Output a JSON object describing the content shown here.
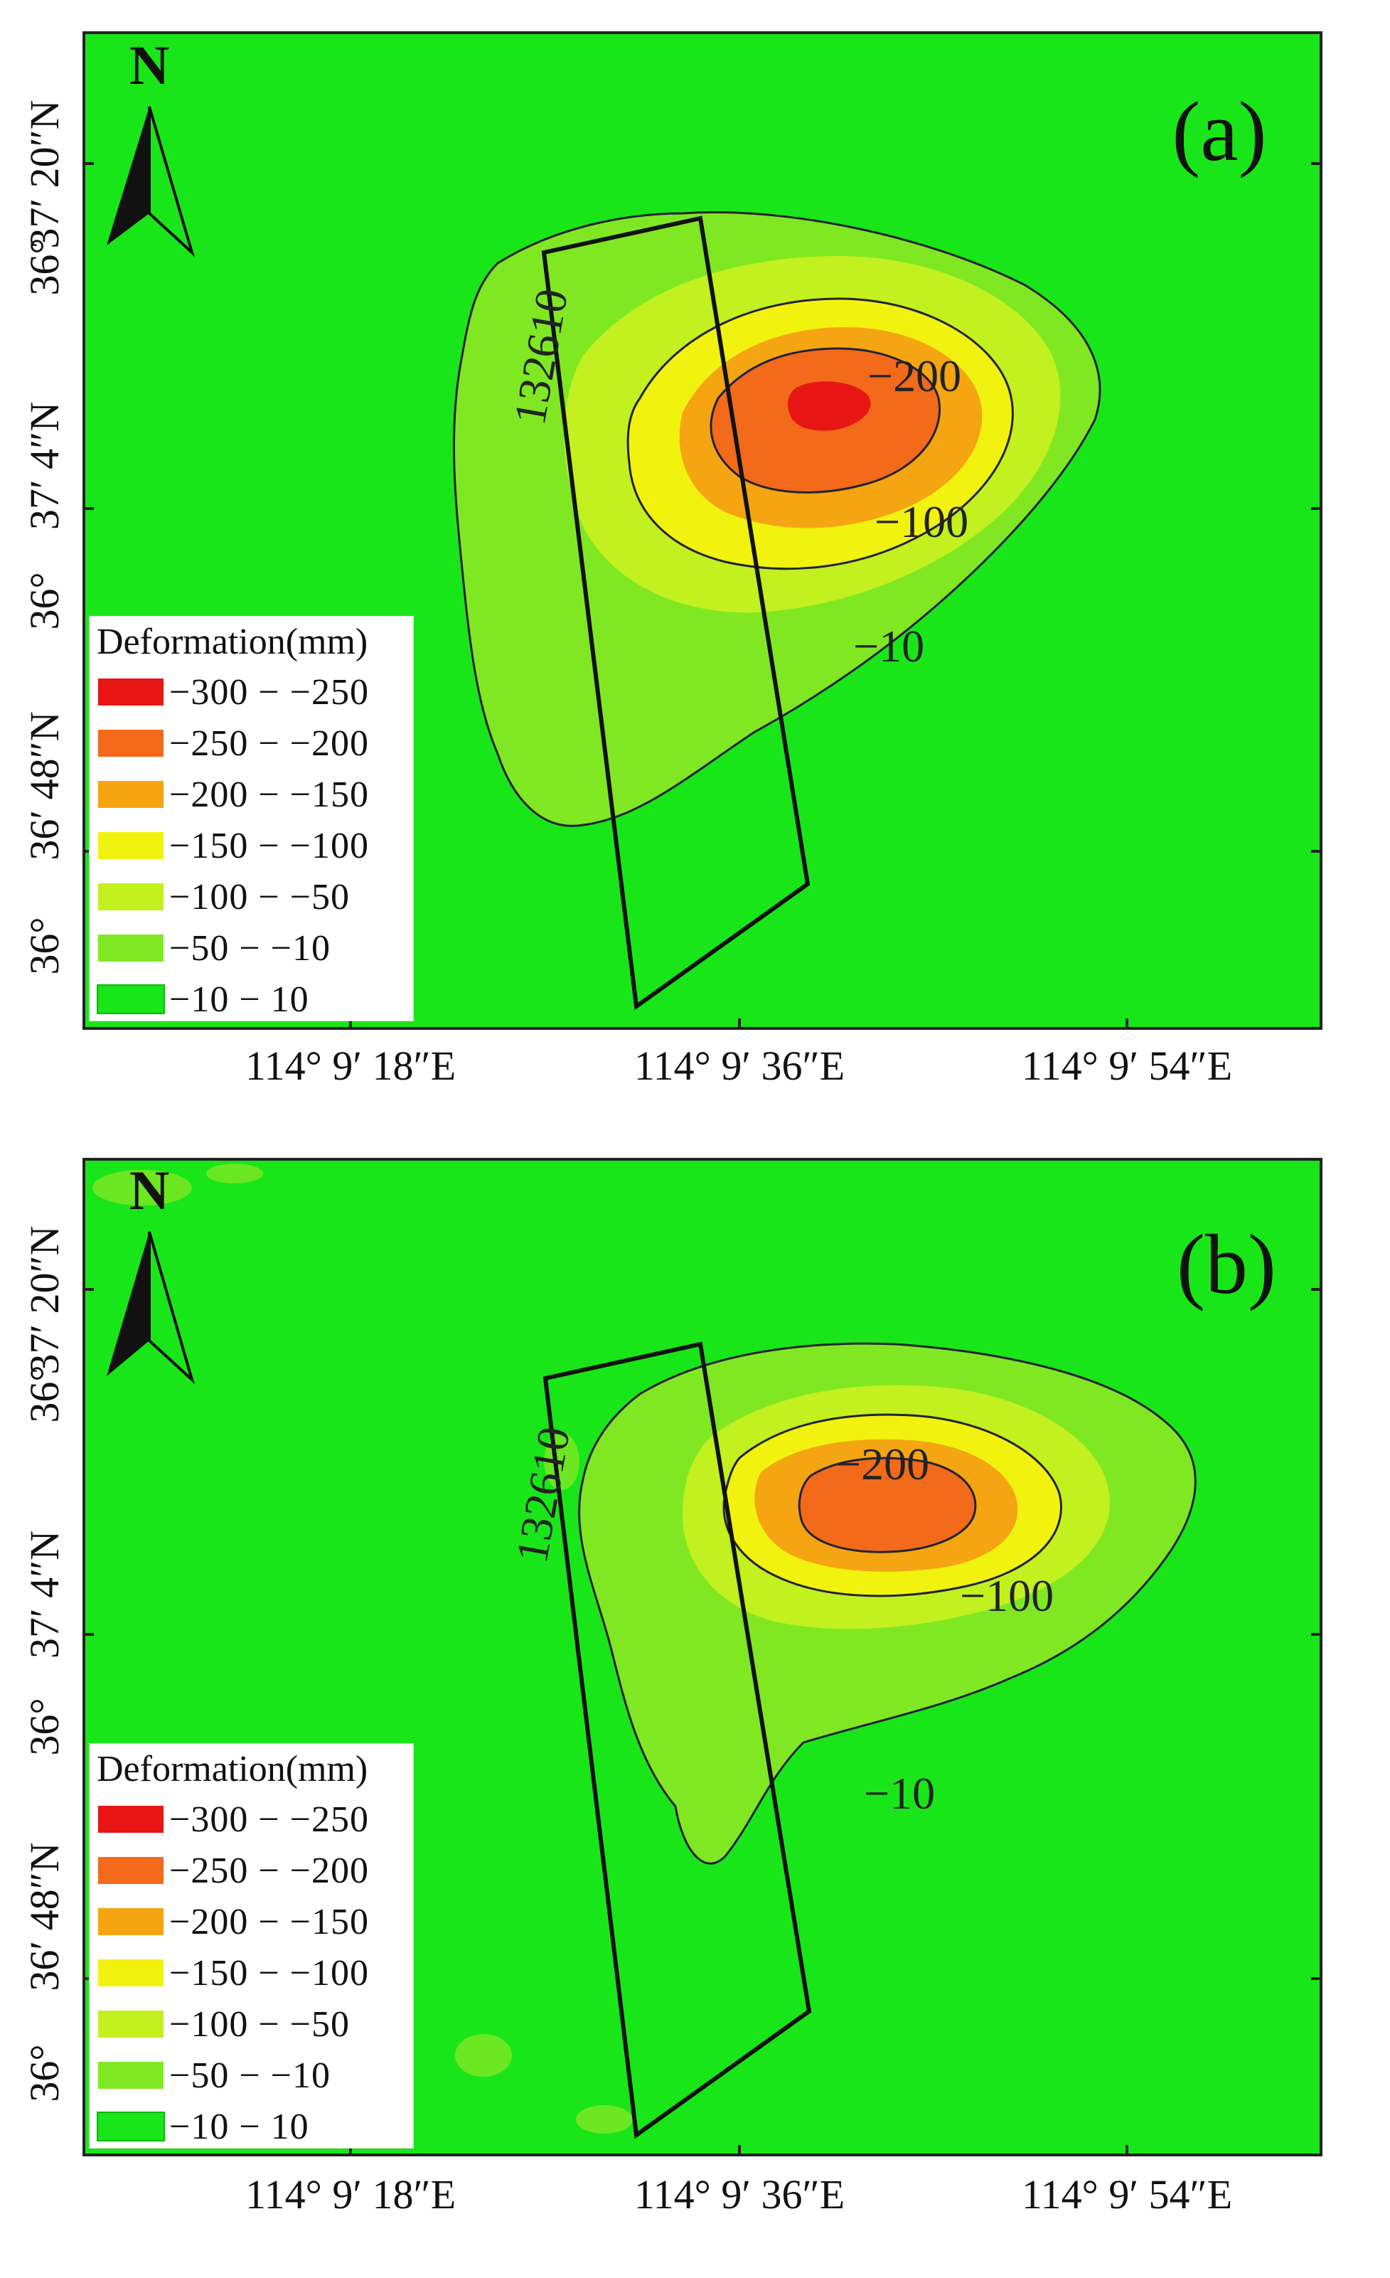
{
  "colors": {
    "background_green": "#19e619",
    "class_m300_m250": "#e81515",
    "class_m250_m200": "#f26a1a",
    "class_m200_m150": "#f5a511",
    "class_m150_m100": "#f2f20f",
    "class_m100_m50": "#c3f01f",
    "class_m50_m10": "#7fe823",
    "class_m10_10": "#19e619"
  },
  "north_arrow_letter": "N",
  "panels": [
    {
      "label": "(a)",
      "workface_label": "132610",
      "y_ticks": [
        "37′ 20″N",
        "36°",
        "37′ 4″N",
        "36°",
        "36′ 48″N",
        "36°"
      ],
      "x_ticks": [
        "114° 9′ 18″E",
        "114° 9′ 36″E",
        "114° 9′ 54″E"
      ],
      "contour_labels": [
        "−200",
        "−100",
        "−10"
      ],
      "legend": {
        "title": "Deformation(mm)",
        "items": [
          {
            "label": "−300  −  −250",
            "color": "#e81515"
          },
          {
            "label": "−250  −  −200",
            "color": "#f26a1a"
          },
          {
            "label": "−200  −  −150",
            "color": "#f5a511"
          },
          {
            "label": "−150  −  −100",
            "color": "#f2f20f"
          },
          {
            "label": "−100  −  −50",
            "color": "#c3f01f"
          },
          {
            "label": "−50  −  −10",
            "color": "#7fe823"
          },
          {
            "label": "−10  −  10",
            "color": "#19e619"
          }
        ]
      }
    },
    {
      "label": "(b)",
      "workface_label": "132610",
      "y_ticks": [
        "37′ 20″N",
        "36°",
        "37′ 4″N",
        "36°",
        "36′ 48″N",
        "36°"
      ],
      "x_ticks": [
        "114° 9′ 18″E",
        "114° 9′ 36″E",
        "114° 9′ 54″E"
      ],
      "contour_labels": [
        "−200",
        "−100",
        "−10"
      ],
      "legend": {
        "title": "Deformation(mm)",
        "items": [
          {
            "label": "−300  −  −250",
            "color": "#e81515"
          },
          {
            "label": "−250  −  −200",
            "color": "#f26a1a"
          },
          {
            "label": "−200  −  −150",
            "color": "#f5a511"
          },
          {
            "label": "−150  −  −100",
            "color": "#f2f20f"
          },
          {
            "label": "−100  −  −50",
            "color": "#c3f01f"
          },
          {
            "label": "−50  −  −10",
            "color": "#7fe823"
          },
          {
            "label": "−10  −  10",
            "color": "#19e619"
          }
        ]
      }
    }
  ]
}
